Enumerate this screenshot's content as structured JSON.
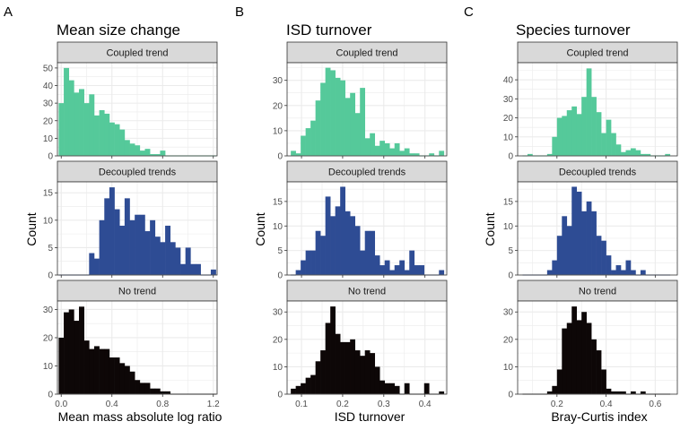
{
  "figure": {
    "panel_letters": [
      "A",
      "B",
      "C"
    ],
    "titles": [
      "Mean size change",
      "ISD turnover",
      "Species turnover"
    ],
    "xlabels": [
      "Mean mass absolute log ratio",
      "ISD turnover",
      "Bray-Curtis index"
    ],
    "ylabel": "Count",
    "strip_labels": [
      "Coupled trend",
      "Decoupled trends",
      "No trend"
    ]
  },
  "colors": {
    "Coupled trend": "#55c99a",
    "Decoupled trends": "#2e4c94",
    "No trend": "#0d0707",
    "strip_bg": "#d9d9d9",
    "grid": "#ebebeb"
  },
  "chart_data": [
    {
      "type": "bar",
      "title": "Mean size change",
      "xlabel": "Mean mass absolute log ratio",
      "ylabel": "Count",
      "xlim": [
        -0.03,
        1.23
      ],
      "xticks": [
        0.0,
        0.4,
        0.8,
        1.2
      ],
      "xtick_labels": [
        "0.0",
        "0.4",
        "0.8",
        "1.2"
      ],
      "bin_width": 0.04,
      "grid": true,
      "facets": [
        {
          "label": "Coupled trend",
          "ylim": [
            0,
            53
          ],
          "yticks": [
            0,
            10,
            20,
            30,
            40,
            50
          ],
          "x": [
            0.0,
            0.04,
            0.08,
            0.12,
            0.16,
            0.2,
            0.24,
            0.28,
            0.32,
            0.36,
            0.4,
            0.44,
            0.48,
            0.52,
            0.56,
            0.6,
            0.64,
            0.68,
            0.72,
            0.76,
            0.8,
            0.84,
            0.88,
            0.92,
            0.96,
            1.0,
            1.04,
            1.08,
            1.12,
            1.16,
            1.2
          ],
          "values": [
            30,
            50,
            43,
            36,
            38,
            30,
            35,
            23,
            26,
            24,
            19,
            18,
            15,
            9,
            7,
            6,
            3,
            4,
            1,
            1,
            3,
            0,
            0,
            0,
            0,
            0,
            0,
            0,
            0,
            0,
            0
          ]
        },
        {
          "label": "Decoupled trends",
          "ylim": [
            0,
            17
          ],
          "yticks": [
            0,
            5,
            10,
            15
          ],
          "x": [
            0.0,
            0.04,
            0.08,
            0.12,
            0.16,
            0.2,
            0.24,
            0.28,
            0.32,
            0.36,
            0.4,
            0.44,
            0.48,
            0.52,
            0.56,
            0.6,
            0.64,
            0.68,
            0.72,
            0.76,
            0.8,
            0.84,
            0.88,
            0.92,
            0.96,
            1.0,
            1.04,
            1.08,
            1.12,
            1.16,
            1.2
          ],
          "values": [
            0,
            0,
            0,
            0,
            0,
            0,
            4,
            3,
            10,
            14,
            16,
            12,
            9,
            14,
            10,
            11,
            11,
            8,
            10,
            7,
            6,
            9,
            6,
            5,
            2,
            5,
            2,
            2,
            0,
            0,
            1
          ]
        },
        {
          "label": "No trend",
          "ylim": [
            0,
            33
          ],
          "yticks": [
            0,
            10,
            20,
            30
          ],
          "x": [
            0.0,
            0.04,
            0.08,
            0.12,
            0.16,
            0.2,
            0.24,
            0.28,
            0.32,
            0.36,
            0.4,
            0.44,
            0.48,
            0.52,
            0.56,
            0.6,
            0.64,
            0.68,
            0.72,
            0.76,
            0.8,
            0.84,
            0.88,
            0.92,
            0.96,
            1.0,
            1.04,
            1.08,
            1.12,
            1.16,
            1.2
          ],
          "values": [
            20,
            29,
            30,
            26,
            31,
            19,
            16,
            17,
            16,
            16,
            13,
            13,
            11,
            10,
            8,
            5,
            4,
            4,
            2,
            2,
            1,
            1,
            0,
            0,
            0,
            0,
            0,
            0,
            0,
            0,
            0
          ]
        }
      ]
    },
    {
      "type": "bar",
      "title": "ISD turnover",
      "xlabel": "ISD turnover",
      "ylabel": "Count",
      "xlim": [
        0.065,
        0.453
      ],
      "xticks": [
        0.1,
        0.2,
        0.3,
        0.4
      ],
      "xtick_labels": [
        "0.1",
        "0.2",
        "0.3",
        "0.4"
      ],
      "bin_width": 0.012,
      "grid": true,
      "facets": [
        {
          "label": "Coupled trend",
          "ylim": [
            0,
            37
          ],
          "yticks": [
            0,
            10,
            20,
            30
          ],
          "x": [
            0.08,
            0.092,
            0.104,
            0.116,
            0.128,
            0.14,
            0.152,
            0.164,
            0.176,
            0.188,
            0.2,
            0.212,
            0.224,
            0.236,
            0.248,
            0.26,
            0.272,
            0.284,
            0.296,
            0.308,
            0.32,
            0.332,
            0.344,
            0.356,
            0.368,
            0.38,
            0.392,
            0.404,
            0.416,
            0.428,
            0.44
          ],
          "values": [
            2,
            1,
            8,
            11,
            14,
            22,
            29,
            35,
            34,
            31,
            30,
            23,
            25,
            17,
            27,
            7,
            9,
            4,
            6,
            5,
            3,
            5,
            2,
            3,
            1,
            1,
            0,
            0,
            1,
            0,
            2
          ]
        },
        {
          "label": "Decoupled trends",
          "ylim": [
            0,
            19
          ],
          "yticks": [
            0,
            5,
            10,
            15
          ],
          "x": [
            0.08,
            0.092,
            0.104,
            0.116,
            0.128,
            0.14,
            0.152,
            0.164,
            0.176,
            0.188,
            0.2,
            0.212,
            0.224,
            0.236,
            0.248,
            0.26,
            0.272,
            0.284,
            0.296,
            0.308,
            0.32,
            0.332,
            0.344,
            0.356,
            0.368,
            0.38,
            0.392,
            0.404,
            0.416,
            0.428,
            0.44
          ],
          "values": [
            0,
            1,
            3,
            5,
            5,
            9,
            8,
            16,
            12,
            14,
            18,
            13,
            12,
            10,
            5,
            9,
            9,
            4,
            2,
            3,
            1,
            2,
            3,
            1,
            5,
            2,
            2,
            0,
            0,
            0,
            1
          ]
        },
        {
          "label": "No trend",
          "ylim": [
            0,
            34
          ],
          "yticks": [
            0,
            10,
            20,
            30
          ],
          "x": [
            0.08,
            0.092,
            0.104,
            0.116,
            0.128,
            0.14,
            0.152,
            0.164,
            0.176,
            0.188,
            0.2,
            0.212,
            0.224,
            0.236,
            0.248,
            0.26,
            0.272,
            0.284,
            0.296,
            0.308,
            0.32,
            0.332,
            0.344,
            0.356,
            0.368,
            0.38,
            0.392,
            0.404,
            0.416,
            0.428,
            0.44
          ],
          "values": [
            2,
            3,
            4,
            6,
            7,
            12,
            16,
            26,
            32,
            22,
            19,
            19,
            20,
            16,
            14,
            16,
            15,
            10,
            5,
            4,
            4,
            3,
            0,
            4,
            0,
            0,
            0,
            4,
            0,
            0,
            1
          ]
        }
      ]
    },
    {
      "type": "bar",
      "title": "Species turnover",
      "xlabel": "Bray-Curtis index",
      "ylabel": "Count",
      "xlim": [
        0.04,
        0.69
      ],
      "xticks": [
        0.2,
        0.4,
        0.6
      ],
      "xtick_labels": [
        "0.2",
        "0.4",
        "0.6"
      ],
      "bin_width": 0.02,
      "grid": true,
      "facets": [
        {
          "label": "Coupled trend",
          "ylim": [
            0,
            49
          ],
          "yticks": [
            0,
            10,
            20,
            30,
            40
          ],
          "x": [
            0.07,
            0.09,
            0.11,
            0.13,
            0.15,
            0.17,
            0.19,
            0.21,
            0.23,
            0.25,
            0.27,
            0.29,
            0.31,
            0.33,
            0.35,
            0.37,
            0.39,
            0.41,
            0.43,
            0.45,
            0.47,
            0.49,
            0.51,
            0.53,
            0.55,
            0.57,
            0.59,
            0.61,
            0.63,
            0.65
          ],
          "values": [
            0,
            1,
            0,
            0,
            0,
            1,
            10,
            20,
            21,
            24,
            26,
            22,
            31,
            46,
            31,
            23,
            12,
            19,
            12,
            6,
            2,
            3,
            4,
            3,
            1,
            1,
            0,
            0,
            0,
            1
          ]
        },
        {
          "label": "Decoupled trends",
          "ylim": [
            0,
            19
          ],
          "yticks": [
            0,
            5,
            10,
            15
          ],
          "x": [
            0.07,
            0.09,
            0.11,
            0.13,
            0.15,
            0.17,
            0.19,
            0.21,
            0.23,
            0.25,
            0.27,
            0.29,
            0.31,
            0.33,
            0.35,
            0.37,
            0.39,
            0.41,
            0.43,
            0.45,
            0.47,
            0.49,
            0.51,
            0.53,
            0.55,
            0.57,
            0.59,
            0.61,
            0.63,
            0.65
          ],
          "values": [
            0,
            0,
            0,
            0,
            0,
            1,
            3,
            8,
            12,
            10,
            18,
            17,
            13,
            15,
            13,
            8,
            7,
            4,
            1,
            2,
            1,
            3,
            1,
            0,
            1,
            0,
            0,
            0,
            0,
            0
          ]
        },
        {
          "label": "No trend",
          "ylim": [
            0,
            34
          ],
          "yticks": [
            0,
            10,
            20,
            30
          ],
          "x": [
            0.07,
            0.09,
            0.11,
            0.13,
            0.15,
            0.17,
            0.19,
            0.21,
            0.23,
            0.25,
            0.27,
            0.29,
            0.31,
            0.33,
            0.35,
            0.37,
            0.39,
            0.41,
            0.43,
            0.45,
            0.47,
            0.49,
            0.51,
            0.53,
            0.55,
            0.57,
            0.59,
            0.61,
            0.63,
            0.65
          ],
          "values": [
            0,
            0,
            0,
            0,
            0,
            1,
            3,
            9,
            24,
            26,
            32,
            27,
            30,
            26,
            20,
            16,
            9,
            2,
            1,
            1,
            1,
            0,
            1,
            0,
            1,
            0,
            0,
            0,
            0,
            0
          ]
        }
      ]
    }
  ]
}
